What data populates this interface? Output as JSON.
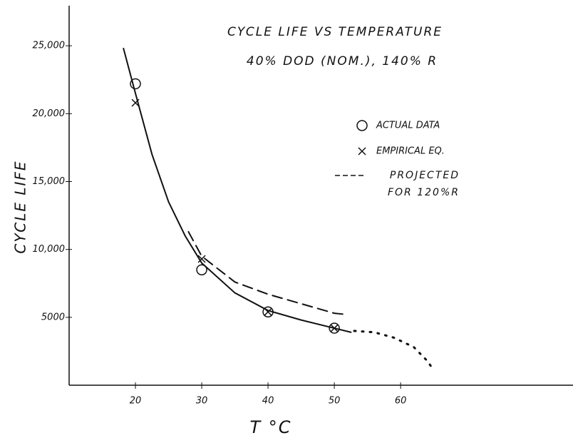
{
  "chart_data": {
    "type": "line",
    "title": "CYCLE LIFE VS TEMPERATURE",
    "subtitle": "40% DOD (NOM.), 140% R",
    "x_label": "T °C",
    "y_label": "CYCLE LIFE",
    "xlim": [
      10,
      86
    ],
    "xticks": [
      20,
      30,
      40,
      50,
      60
    ],
    "ylim": [
      0,
      27950
    ],
    "yticks": [
      {
        "value": 5000,
        "label": "5000"
      },
      {
        "value": 10000,
        "label": "10,000"
      },
      {
        "value": 15000,
        "label": "15,000"
      },
      {
        "value": 20000,
        "label": "20,000"
      },
      {
        "value": 25000,
        "label": "25,000"
      }
    ],
    "grid": false,
    "series": [
      {
        "name": "ACTUAL DATA",
        "color": "#111111",
        "marker": "circle",
        "x": [
          20,
          30,
          40,
          50
        ],
        "values": [
          22200,
          8500,
          5400,
          4200
        ]
      },
      {
        "name": "EMPIRICAL EQ.",
        "color": "#111111",
        "marker": "x",
        "x": [
          20,
          30,
          40,
          50
        ],
        "values": [
          20800,
          9300,
          5400,
          4200
        ]
      },
      {
        "name": "PROJECTED FOR 120%R",
        "color": "#111111",
        "dash": "dashed",
        "x": [
          28,
          30,
          35,
          40,
          45,
          50,
          52
        ],
        "values": [
          11300,
          9500,
          7600,
          6700,
          6000,
          5300,
          5200
        ]
      },
      {
        "color": "#111111",
        "dash": "solid",
        "x": [
          18.2,
          20,
          22.5,
          25,
          27.5,
          30,
          35,
          40,
          45,
          50,
          52.5
        ],
        "values": [
          24800,
          21500,
          17000,
          13500,
          11000,
          9000,
          6800,
          5500,
          4800,
          4200,
          3900
        ]
      },
      {
        "color": "#111111",
        "dash": "dotted",
        "x": [
          53,
          56,
          59,
          62,
          64,
          65
        ],
        "values": [
          4000,
          3900,
          3500,
          2800,
          1800,
          1100
        ]
      }
    ]
  }
}
